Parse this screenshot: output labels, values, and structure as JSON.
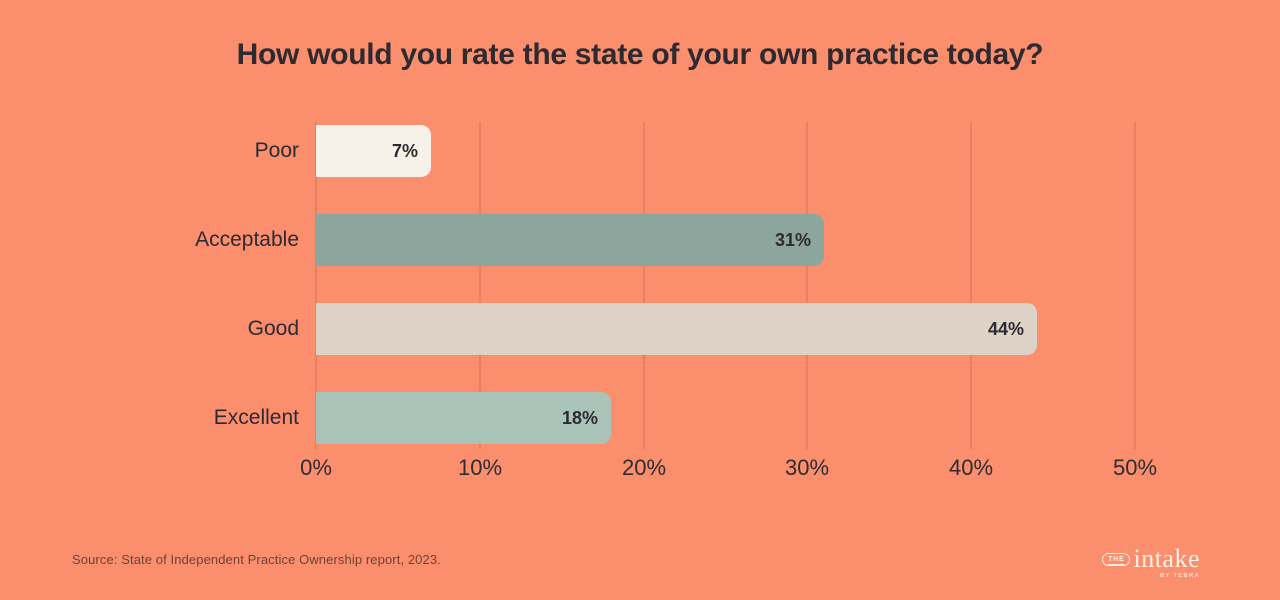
{
  "title": "How would you rate the state of your own practice today?",
  "chart_data": {
    "type": "bar",
    "orientation": "horizontal",
    "title": "How would you rate the state of your own practice today?",
    "categories": [
      "Poor",
      "Acceptable",
      "Good",
      "Excellent"
    ],
    "values": [
      7,
      31,
      44,
      18
    ],
    "value_labels": [
      "7%",
      "31%",
      "44%",
      "18%"
    ],
    "bar_colors": [
      "#f6f2e9",
      "#8ca69d",
      "#dcd3c6",
      "#aac3b9"
    ],
    "xlabel": "",
    "ylabel": "",
    "xlim": [
      0,
      50
    ],
    "x_ticks": [
      "0%",
      "10%",
      "20%",
      "30%",
      "40%",
      "50%"
    ],
    "grid": true,
    "gridline_color": "#e5815f",
    "legend": false
  },
  "source": "Source: State of Independent Practice Ownership report, 2023.",
  "logo": {
    "the": "THE",
    "wordmark": "intake",
    "byline": "BY TEBRA"
  },
  "colors": {
    "background": "#fa8e6d",
    "title_text": "#2d2a32",
    "gridline": "#e5815f",
    "logo": "#f6f1e7"
  }
}
